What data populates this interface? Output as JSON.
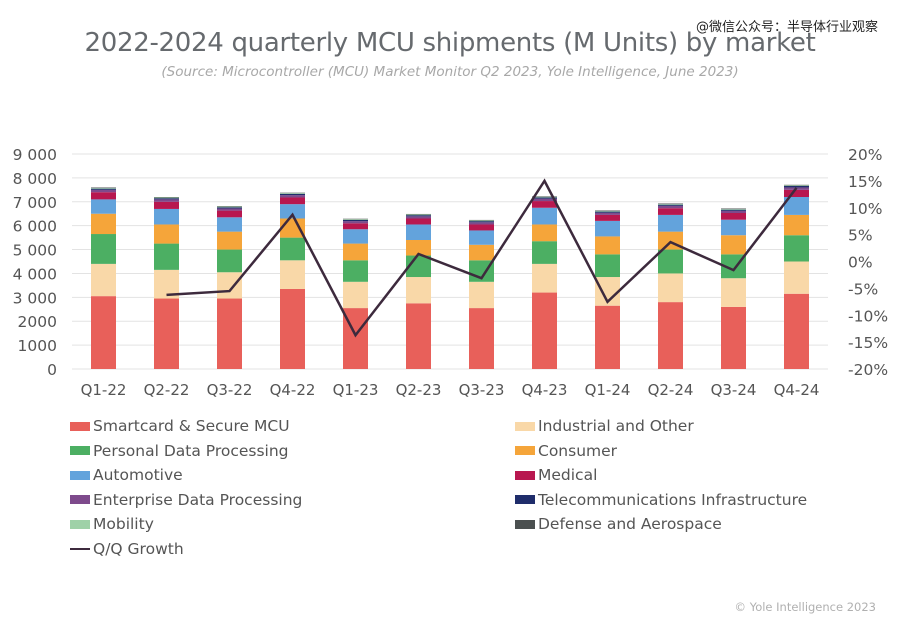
{
  "watermark": "@微信公众号：半导体行业观察",
  "copyright": "© Yole Intelligence 2023",
  "chart_data": {
    "type": "bar",
    "stacked": true,
    "title": "2022-2024 quarterly MCU shipments (M Units) by market",
    "subtitle": "(Source: Microcontroller (MCU) Market Monitor Q2 2023, Yole Intelligence, June 2023)",
    "xlabel": "",
    "ylabel": "M Units",
    "ylim": [
      0,
      9000
    ],
    "yticks": [
      0,
      1000,
      2000,
      3000,
      4000,
      5000,
      6000,
      7000,
      8000,
      9000
    ],
    "ytick_labels": [
      "0",
      "1000",
      "2000",
      "3 000",
      "4 000",
      "5 000",
      "6 000",
      "7 000",
      "8 000",
      "9 000"
    ],
    "y2lim": [
      -20,
      20
    ],
    "y2ticks": [
      -20,
      -15,
      -10,
      -5,
      0,
      5,
      10,
      15,
      20
    ],
    "y2tick_labels": [
      "-20%",
      "-15%",
      "-10%",
      "-5%",
      "0%",
      "5%",
      "10%",
      "15%",
      "20%"
    ],
    "grid": true,
    "legend_position": "bottom",
    "categories": [
      "Q1-22",
      "Q2-22",
      "Q3-22",
      "Q4-22",
      "Q1-23",
      "Q2-23",
      "Q3-23",
      "Q4-23",
      "Q1-24",
      "Q2-24",
      "Q3-24",
      "Q4-24"
    ],
    "series": [
      {
        "name": "Smartcard & Secure MCU",
        "color": "#e8605a",
        "values": [
          3050,
          2950,
          2950,
          3350,
          2550,
          2750,
          2550,
          3200,
          2650,
          2800,
          2600,
          3150
        ]
      },
      {
        "name": "Industrial and Other",
        "color": "#f9d8a8",
        "values": [
          1350,
          1200,
          1100,
          1200,
          1100,
          1100,
          1100,
          1200,
          1200,
          1200,
          1200,
          1350
        ]
      },
      {
        "name": "Personal Data Processing",
        "color": "#4caf63",
        "values": [
          1250,
          1100,
          950,
          950,
          900,
          900,
          900,
          950,
          950,
          1000,
          1000,
          1100
        ]
      },
      {
        "name": "Consumer",
        "color": "#f5a53a",
        "values": [
          850,
          800,
          750,
          800,
          700,
          650,
          650,
          700,
          750,
          750,
          800,
          850
        ]
      },
      {
        "name": "Automotive",
        "color": "#63a3dc",
        "values": [
          600,
          650,
          600,
          600,
          600,
          650,
          600,
          700,
          650,
          700,
          650,
          750
        ]
      },
      {
        "name": "Medical",
        "color": "#b8174f",
        "values": [
          300,
          300,
          280,
          280,
          250,
          250,
          250,
          280,
          250,
          280,
          280,
          300
        ]
      },
      {
        "name": "Enterprise Data Processing",
        "color": "#7e4a8c",
        "values": [
          100,
          100,
          90,
          100,
          90,
          90,
          90,
          100,
          90,
          100,
          90,
          100
        ]
      },
      {
        "name": "Telecommunications Infrastructure",
        "color": "#1f2d6b",
        "values": [
          50,
          50,
          50,
          50,
          50,
          50,
          50,
          50,
          50,
          50,
          50,
          60
        ]
      },
      {
        "name": "Mobility",
        "color": "#9fd1a8",
        "values": [
          30,
          30,
          30,
          30,
          30,
          30,
          30,
          30,
          30,
          30,
          30,
          30
        ]
      },
      {
        "name": "Defense and Aerospace",
        "color": "#4b5050",
        "values": [
          20,
          20,
          20,
          20,
          20,
          20,
          20,
          20,
          20,
          20,
          20,
          20
        ]
      }
    ],
    "line_series": {
      "name": "Q/Q Growth",
      "color": "#3d2a3d",
      "axis": "right",
      "unit": "%",
      "values": [
        null,
        -6.2,
        -5.5,
        8.7,
        -13.7,
        1.4,
        -3.1,
        15.0,
        -7.5,
        3.6,
        -1.6,
        13.7
      ]
    },
    "legend_left": [
      "Smartcard & Secure MCU",
      "Personal Data Processing",
      "Automotive",
      "Enterprise Data Processing",
      "Mobility",
      "Q/Q Growth"
    ],
    "legend_right": [
      "Industrial and Other",
      "Consumer",
      "Medical",
      "Telecommunications Infrastructure",
      "Defense and Aerospace"
    ]
  }
}
